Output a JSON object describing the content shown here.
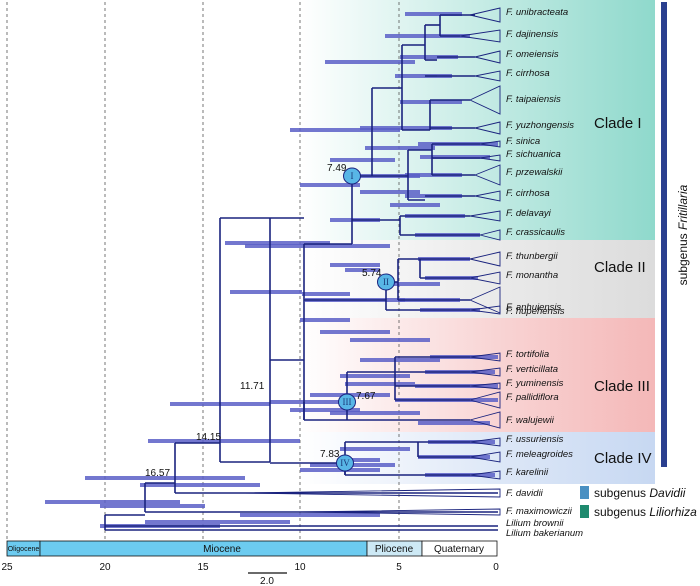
{
  "colors": {
    "clade1": "#8fd9cc",
    "clade2": "#dcdcdc",
    "clade3": "#f4b8b8",
    "clade4": "#c7d8f2",
    "branch": "#1a237e",
    "hpd": "#5b5fc7",
    "node_fill": "#58b6e6",
    "epoch_fill": "#6ccbf0",
    "subgenus_fritillaria": "#2a3f8f",
    "subgenus_davidii": "#4a90c2",
    "subgenus_liliorhiza": "#1e8a6e"
  },
  "taxa": [
    "F. unibracteata",
    "F. dajinensis",
    "F. omeiensis",
    "F. cirrhosa",
    "F. taipaiensis",
    "F. yuzhongensis",
    "F. sinica",
    "F. sichuanica",
    "F. przewalskii",
    "F. cirrhosa",
    "F. delavayi",
    "F. crassicaulis",
    "F. thunbergii",
    "F. monantha",
    "F. anhuiensis",
    "F. hupehensis",
    "F. tortifolia",
    "F. verticillata",
    "F. yuminensis",
    "F. pallidiflora",
    "F. walujewii",
    "F. ussuriensis",
    "F. meleagroides",
    "F. karelinii",
    "F. davidii",
    "F. maximowiczii",
    "Lilium brownii",
    "Lilium bakerianum"
  ],
  "clades": [
    {
      "label": "Clade I"
    },
    {
      "label": "Clade II"
    },
    {
      "label": "Clade III"
    },
    {
      "label": "Clade IV"
    }
  ],
  "nodes": [
    {
      "roman": "I",
      "age": "7.49"
    },
    {
      "roman": "II",
      "age": "5.74"
    },
    {
      "roman": "III",
      "age": "7.67"
    },
    {
      "roman": "IV",
      "age": "7.83"
    }
  ],
  "other_ages": [
    "11.71",
    "14.15",
    "16.57"
  ],
  "axis": {
    "ticks": [
      "25",
      "20",
      "15",
      "10",
      "5",
      "0"
    ],
    "scale_label": "2.0"
  },
  "epochs": [
    "Oligocene",
    "Miocene",
    "Pliocene",
    "Quaternary"
  ],
  "subgenera": {
    "fritillaria_prefix": "subgenus ",
    "fritillaria_name": "Fritillaria",
    "davidii_prefix": "subgenus ",
    "davidii_name": "Davidii",
    "liliorhiza_prefix": "subgenus ",
    "liliorhiza_name": "Liliorhiza"
  }
}
